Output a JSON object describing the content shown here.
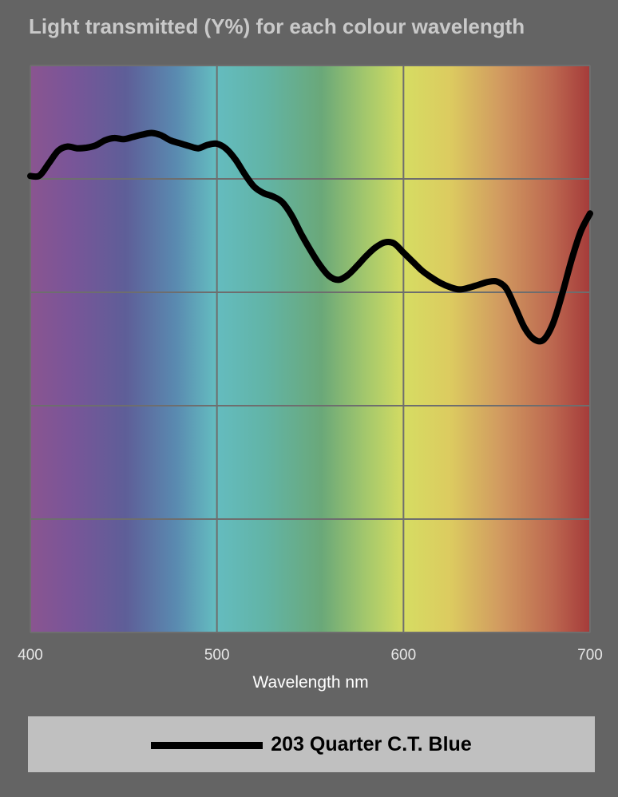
{
  "chart_data": {
    "type": "line",
    "title": "Light transmitted (Y%) for each colour wavelength",
    "xlabel": "Wavelength nm",
    "ylabel": "",
    "xlim": [
      400,
      700
    ],
    "ylim": [
      0,
      100
    ],
    "x_ticks": [
      "400",
      "500",
      "600",
      "700"
    ],
    "grid": true,
    "background": "visible spectrum gradient",
    "legend_position": "bottom",
    "series": [
      {
        "name": "203 Quarter C.T. Blue",
        "color": "#000000",
        "x": [
          400,
          405,
          410,
          415,
          420,
          425,
          430,
          435,
          440,
          445,
          450,
          455,
          460,
          465,
          470,
          475,
          480,
          485,
          490,
          495,
          500,
          505,
          510,
          515,
          520,
          525,
          530,
          535,
          540,
          545,
          550,
          555,
          560,
          565,
          570,
          575,
          580,
          585,
          590,
          595,
          600,
          605,
          610,
          615,
          620,
          625,
          630,
          635,
          640,
          645,
          650,
          655,
          660,
          665,
          670,
          675,
          680,
          685,
          690,
          695,
          700
        ],
        "values": [
          80.5,
          80.6,
          82.8,
          85.0,
          85.7,
          85.4,
          85.5,
          85.9,
          86.8,
          87.2,
          87.0,
          87.4,
          87.8,
          88.1,
          87.7,
          86.8,
          86.3,
          85.8,
          85.4,
          86.0,
          86.2,
          85.3,
          83.4,
          80.8,
          78.6,
          77.5,
          76.9,
          75.9,
          73.6,
          70.4,
          67.5,
          64.9,
          62.9,
          62.2,
          63.0,
          64.6,
          66.4,
          67.9,
          68.8,
          68.6,
          67.0,
          65.4,
          63.8,
          62.6,
          61.6,
          60.9,
          60.5,
          60.8,
          61.3,
          61.8,
          61.9,
          60.7,
          57.3,
          53.7,
          51.7,
          51.6,
          54.4,
          59.6,
          65.6,
          70.7,
          73.9
        ]
      }
    ]
  }
}
